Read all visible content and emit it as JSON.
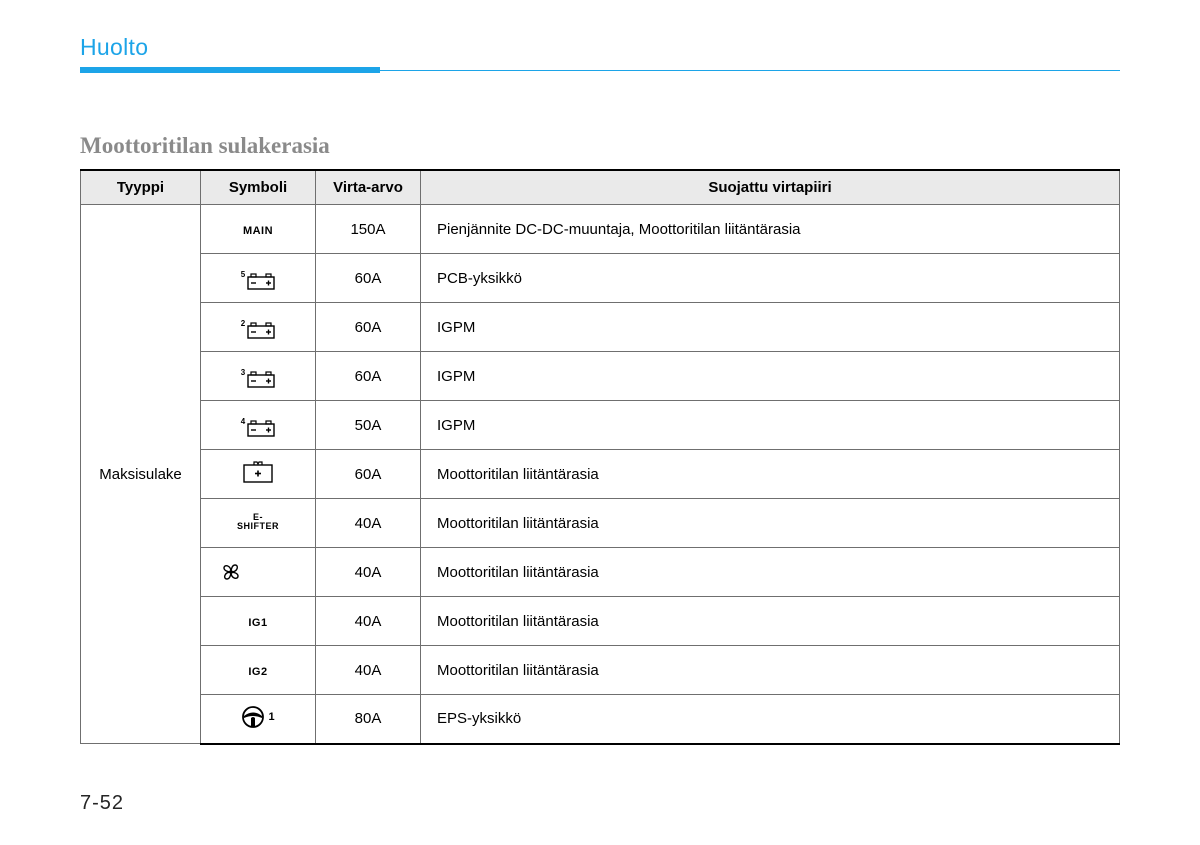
{
  "header": {
    "section": "Huolto",
    "accent_color": "#1ca4e8"
  },
  "subheading": "Moottoritilan sulakerasia",
  "table": {
    "columns": [
      "Tyyppi",
      "Symboli",
      "Virta-arvo",
      "Suojattu virtapiiri"
    ],
    "type_label": "Maksisulake",
    "header_bg": "#eaeaea",
    "border_color": "#6f6f6f",
    "rows": [
      {
        "symbol": {
          "kind": "text",
          "value": "MAIN"
        },
        "amp": "150A",
        "desc": "Pienjännite DC-DC-muuntaja, Moottoritilan liitäntärasia"
      },
      {
        "symbol": {
          "kind": "battery",
          "sup": "5"
        },
        "amp": "60A",
        "desc": "PCB-yksikkö"
      },
      {
        "symbol": {
          "kind": "battery",
          "sup": "2"
        },
        "amp": "60A",
        "desc": "IGPM"
      },
      {
        "symbol": {
          "kind": "battery",
          "sup": "3"
        },
        "amp": "60A",
        "desc": "IGPM"
      },
      {
        "symbol": {
          "kind": "battery",
          "sup": "4"
        },
        "amp": "50A",
        "desc": "IGPM"
      },
      {
        "symbol": {
          "kind": "plus-box"
        },
        "amp": "60A",
        "desc": "Moottoritilan liitäntärasia"
      },
      {
        "symbol": {
          "kind": "text-small",
          "value": "E-\nSHIFTER"
        },
        "amp": "40A",
        "desc": "Moottoritilan liitäntärasia"
      },
      {
        "symbol": {
          "kind": "fan"
        },
        "amp": "40A",
        "desc": "Moottoritilan liitäntärasia"
      },
      {
        "symbol": {
          "kind": "text",
          "value": "IG1"
        },
        "amp": "40A",
        "desc": "Moottoritilan liitäntärasia"
      },
      {
        "symbol": {
          "kind": "text",
          "value": "IG2"
        },
        "amp": "40A",
        "desc": "Moottoritilan liitäntärasia"
      },
      {
        "symbol": {
          "kind": "steering",
          "sup": "1"
        },
        "amp": "80A",
        "desc": "EPS-yksikkö"
      }
    ]
  },
  "page_number": "7-52"
}
